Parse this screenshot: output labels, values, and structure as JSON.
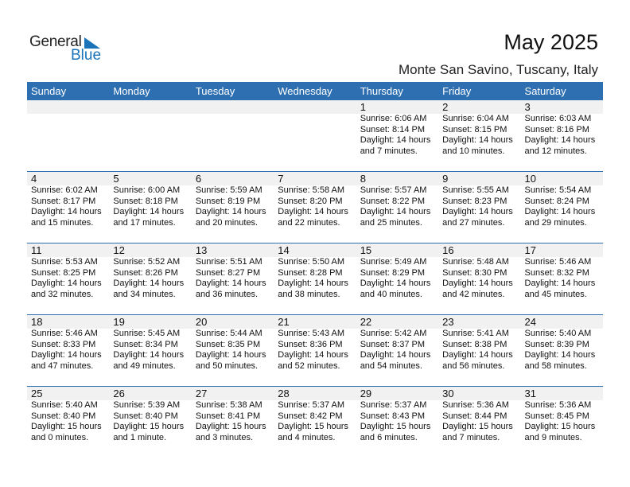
{
  "logo": {
    "line1": "General",
    "line2": "Blue"
  },
  "header": {
    "title": "May 2025",
    "location": "Monte San Savino, Tuscany, Italy"
  },
  "colors": {
    "accent": "#2e6fb1",
    "band": "#f1f1f1"
  },
  "days": [
    "Sunday",
    "Monday",
    "Tuesday",
    "Wednesday",
    "Thursday",
    "Friday",
    "Saturday"
  ],
  "weeks": [
    [
      null,
      null,
      null,
      null,
      {
        "day": "1",
        "sunrise": "Sunrise: 6:06 AM",
        "sunset": "Sunset: 8:14 PM",
        "daylight": "Daylight: 14 hours",
        "minutes": "and 7 minutes."
      },
      {
        "day": "2",
        "sunrise": "Sunrise: 6:04 AM",
        "sunset": "Sunset: 8:15 PM",
        "daylight": "Daylight: 14 hours",
        "minutes": "and 10 minutes."
      },
      {
        "day": "3",
        "sunrise": "Sunrise: 6:03 AM",
        "sunset": "Sunset: 8:16 PM",
        "daylight": "Daylight: 14 hours",
        "minutes": "and 12 minutes."
      }
    ],
    [
      {
        "day": "4",
        "sunrise": "Sunrise: 6:02 AM",
        "sunset": "Sunset: 8:17 PM",
        "daylight": "Daylight: 14 hours",
        "minutes": "and 15 minutes."
      },
      {
        "day": "5",
        "sunrise": "Sunrise: 6:00 AM",
        "sunset": "Sunset: 8:18 PM",
        "daylight": "Daylight: 14 hours",
        "minutes": "and 17 minutes."
      },
      {
        "day": "6",
        "sunrise": "Sunrise: 5:59 AM",
        "sunset": "Sunset: 8:19 PM",
        "daylight": "Daylight: 14 hours",
        "minutes": "and 20 minutes."
      },
      {
        "day": "7",
        "sunrise": "Sunrise: 5:58 AM",
        "sunset": "Sunset: 8:20 PM",
        "daylight": "Daylight: 14 hours",
        "minutes": "and 22 minutes."
      },
      {
        "day": "8",
        "sunrise": "Sunrise: 5:57 AM",
        "sunset": "Sunset: 8:22 PM",
        "daylight": "Daylight: 14 hours",
        "minutes": "and 25 minutes."
      },
      {
        "day": "9",
        "sunrise": "Sunrise: 5:55 AM",
        "sunset": "Sunset: 8:23 PM",
        "daylight": "Daylight: 14 hours",
        "minutes": "and 27 minutes."
      },
      {
        "day": "10",
        "sunrise": "Sunrise: 5:54 AM",
        "sunset": "Sunset: 8:24 PM",
        "daylight": "Daylight: 14 hours",
        "minutes": "and 29 minutes."
      }
    ],
    [
      {
        "day": "11",
        "sunrise": "Sunrise: 5:53 AM",
        "sunset": "Sunset: 8:25 PM",
        "daylight": "Daylight: 14 hours",
        "minutes": "and 32 minutes."
      },
      {
        "day": "12",
        "sunrise": "Sunrise: 5:52 AM",
        "sunset": "Sunset: 8:26 PM",
        "daylight": "Daylight: 14 hours",
        "minutes": "and 34 minutes."
      },
      {
        "day": "13",
        "sunrise": "Sunrise: 5:51 AM",
        "sunset": "Sunset: 8:27 PM",
        "daylight": "Daylight: 14 hours",
        "minutes": "and 36 minutes."
      },
      {
        "day": "14",
        "sunrise": "Sunrise: 5:50 AM",
        "sunset": "Sunset: 8:28 PM",
        "daylight": "Daylight: 14 hours",
        "minutes": "and 38 minutes."
      },
      {
        "day": "15",
        "sunrise": "Sunrise: 5:49 AM",
        "sunset": "Sunset: 8:29 PM",
        "daylight": "Daylight: 14 hours",
        "minutes": "and 40 minutes."
      },
      {
        "day": "16",
        "sunrise": "Sunrise: 5:48 AM",
        "sunset": "Sunset: 8:30 PM",
        "daylight": "Daylight: 14 hours",
        "minutes": "and 42 minutes."
      },
      {
        "day": "17",
        "sunrise": "Sunrise: 5:46 AM",
        "sunset": "Sunset: 8:32 PM",
        "daylight": "Daylight: 14 hours",
        "minutes": "and 45 minutes."
      }
    ],
    [
      {
        "day": "18",
        "sunrise": "Sunrise: 5:46 AM",
        "sunset": "Sunset: 8:33 PM",
        "daylight": "Daylight: 14 hours",
        "minutes": "and 47 minutes."
      },
      {
        "day": "19",
        "sunrise": "Sunrise: 5:45 AM",
        "sunset": "Sunset: 8:34 PM",
        "daylight": "Daylight: 14 hours",
        "minutes": "and 49 minutes."
      },
      {
        "day": "20",
        "sunrise": "Sunrise: 5:44 AM",
        "sunset": "Sunset: 8:35 PM",
        "daylight": "Daylight: 14 hours",
        "minutes": "and 50 minutes."
      },
      {
        "day": "21",
        "sunrise": "Sunrise: 5:43 AM",
        "sunset": "Sunset: 8:36 PM",
        "daylight": "Daylight: 14 hours",
        "minutes": "and 52 minutes."
      },
      {
        "day": "22",
        "sunrise": "Sunrise: 5:42 AM",
        "sunset": "Sunset: 8:37 PM",
        "daylight": "Daylight: 14 hours",
        "minutes": "and 54 minutes."
      },
      {
        "day": "23",
        "sunrise": "Sunrise: 5:41 AM",
        "sunset": "Sunset: 8:38 PM",
        "daylight": "Daylight: 14 hours",
        "minutes": "and 56 minutes."
      },
      {
        "day": "24",
        "sunrise": "Sunrise: 5:40 AM",
        "sunset": "Sunset: 8:39 PM",
        "daylight": "Daylight: 14 hours",
        "minutes": "and 58 minutes."
      }
    ],
    [
      {
        "day": "25",
        "sunrise": "Sunrise: 5:40 AM",
        "sunset": "Sunset: 8:40 PM",
        "daylight": "Daylight: 15 hours",
        "minutes": "and 0 minutes."
      },
      {
        "day": "26",
        "sunrise": "Sunrise: 5:39 AM",
        "sunset": "Sunset: 8:40 PM",
        "daylight": "Daylight: 15 hours",
        "minutes": "and 1 minute."
      },
      {
        "day": "27",
        "sunrise": "Sunrise: 5:38 AM",
        "sunset": "Sunset: 8:41 PM",
        "daylight": "Daylight: 15 hours",
        "minutes": "and 3 minutes."
      },
      {
        "day": "28",
        "sunrise": "Sunrise: 5:37 AM",
        "sunset": "Sunset: 8:42 PM",
        "daylight": "Daylight: 15 hours",
        "minutes": "and 4 minutes."
      },
      {
        "day": "29",
        "sunrise": "Sunrise: 5:37 AM",
        "sunset": "Sunset: 8:43 PM",
        "daylight": "Daylight: 15 hours",
        "minutes": "and 6 minutes."
      },
      {
        "day": "30",
        "sunrise": "Sunrise: 5:36 AM",
        "sunset": "Sunset: 8:44 PM",
        "daylight": "Daylight: 15 hours",
        "minutes": "and 7 minutes."
      },
      {
        "day": "31",
        "sunrise": "Sunrise: 5:36 AM",
        "sunset": "Sunset: 8:45 PM",
        "daylight": "Daylight: 15 hours",
        "minutes": "and 9 minutes."
      }
    ]
  ]
}
